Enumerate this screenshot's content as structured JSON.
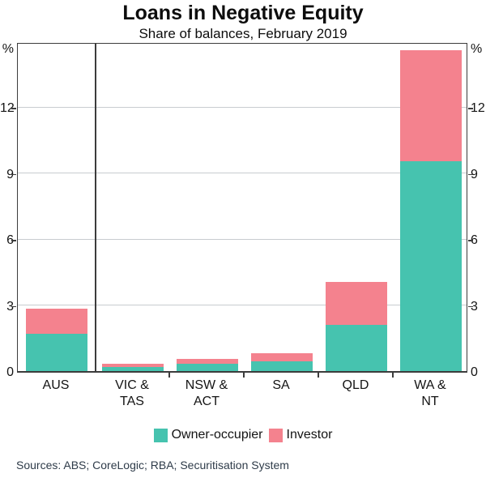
{
  "header": {
    "title": "Loans in Negative Equity",
    "subtitle": "Share of balances, February 2019"
  },
  "chart_data": {
    "type": "bar",
    "stacked": true,
    "unit": "%",
    "title": "Loans in Negative Equity",
    "subtitle": "Share of balances, February 2019",
    "categories": [
      "AUS",
      "VIC & TAS",
      "NSW & ACT",
      "SA",
      "QLD",
      "WA & NT"
    ],
    "category_label_lines": [
      [
        "AUS"
      ],
      [
        "VIC &",
        "TAS"
      ],
      [
        "NSW &",
        "ACT"
      ],
      [
        "SA"
      ],
      [
        "QLD"
      ],
      [
        "WA &",
        "NT"
      ]
    ],
    "series": [
      {
        "name": "Owner-occupier",
        "color": "#46c3af",
        "values": [
          1.7,
          0.2,
          0.35,
          0.45,
          2.1,
          9.55
        ]
      },
      {
        "name": "Investor",
        "color": "#f4828e",
        "values": [
          1.15,
          0.15,
          0.2,
          0.35,
          1.95,
          5.05
        ]
      }
    ],
    "ylim": [
      0,
      15
    ],
    "yticks": [
      0,
      3,
      6,
      9,
      12
    ],
    "ytick_top_label": "%",
    "dual_axis_labels": true,
    "grid": true,
    "separator_after_category": 0,
    "legend_position": "bottom"
  },
  "footer": {
    "sources": "Sources: ABS; CoreLogic; RBA; Securitisation System"
  },
  "colors": {
    "owner_occupier": "#46c3af",
    "investor": "#f4828e",
    "axis": "#3c3c3c",
    "gridline": "#c8ccd0",
    "sources_text": "#2e3b49"
  }
}
